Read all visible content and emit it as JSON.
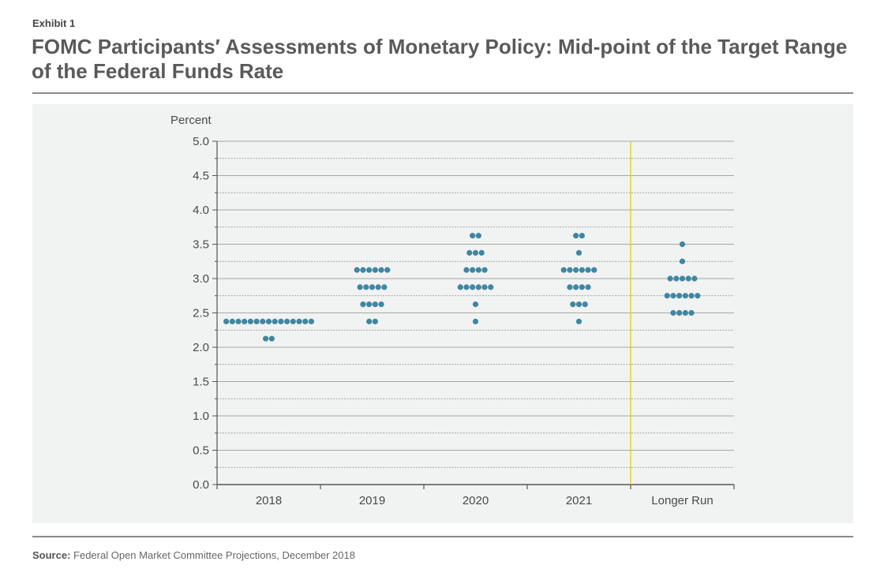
{
  "header": {
    "exhibit_label": "Exhibit 1",
    "title": "FOMC Participants′ Assessments of Monetary Policy: Mid-point of the Target Range of the Federal Funds Rate"
  },
  "footer": {
    "source_label": "Source:",
    "source_text": "Federal Open Market Committee Projections, December 2018"
  },
  "colors": {
    "dot": "#3f86a2",
    "projection_divider": "#f2c420",
    "panel": "#f1f2f2"
  },
  "chart_data": {
    "type": "scatter",
    "ylabel": "Percent",
    "ylim": [
      0,
      5
    ],
    "y_ticks": [
      "0.0",
      "0.5",
      "1.0",
      "1.5",
      "2.0",
      "2.5",
      "3.0",
      "3.5",
      "4.0",
      "4.5",
      "5.0"
    ],
    "grid": true,
    "categories": [
      "2018",
      "2019",
      "2020",
      "2021",
      "Longer Run"
    ],
    "series": [
      {
        "category": "2018",
        "points": [
          {
            "y": 2.375,
            "count": 15
          },
          {
            "y": 2.125,
            "count": 2
          }
        ]
      },
      {
        "category": "2019",
        "points": [
          {
            "y": 3.125,
            "count": 6
          },
          {
            "y": 2.875,
            "count": 5
          },
          {
            "y": 2.625,
            "count": 4
          },
          {
            "y": 2.375,
            "count": 2
          }
        ]
      },
      {
        "category": "2020",
        "points": [
          {
            "y": 3.625,
            "count": 2
          },
          {
            "y": 3.375,
            "count": 3
          },
          {
            "y": 3.125,
            "count": 4
          },
          {
            "y": 2.875,
            "count": 6
          },
          {
            "y": 2.625,
            "count": 1
          },
          {
            "y": 2.375,
            "count": 1
          }
        ]
      },
      {
        "category": "2021",
        "points": [
          {
            "y": 3.625,
            "count": 2
          },
          {
            "y": 3.375,
            "count": 1
          },
          {
            "y": 3.125,
            "count": 6
          },
          {
            "y": 2.875,
            "count": 4
          },
          {
            "y": 2.625,
            "count": 3
          },
          {
            "y": 2.375,
            "count": 1
          }
        ]
      },
      {
        "category": "Longer Run",
        "points": [
          {
            "y": 3.5,
            "count": 1
          },
          {
            "y": 3.25,
            "count": 1
          },
          {
            "y": 3.0,
            "count": 5
          },
          {
            "y": 2.75,
            "count": 6
          },
          {
            "y": 2.5,
            "count": 4
          }
        ]
      }
    ]
  }
}
